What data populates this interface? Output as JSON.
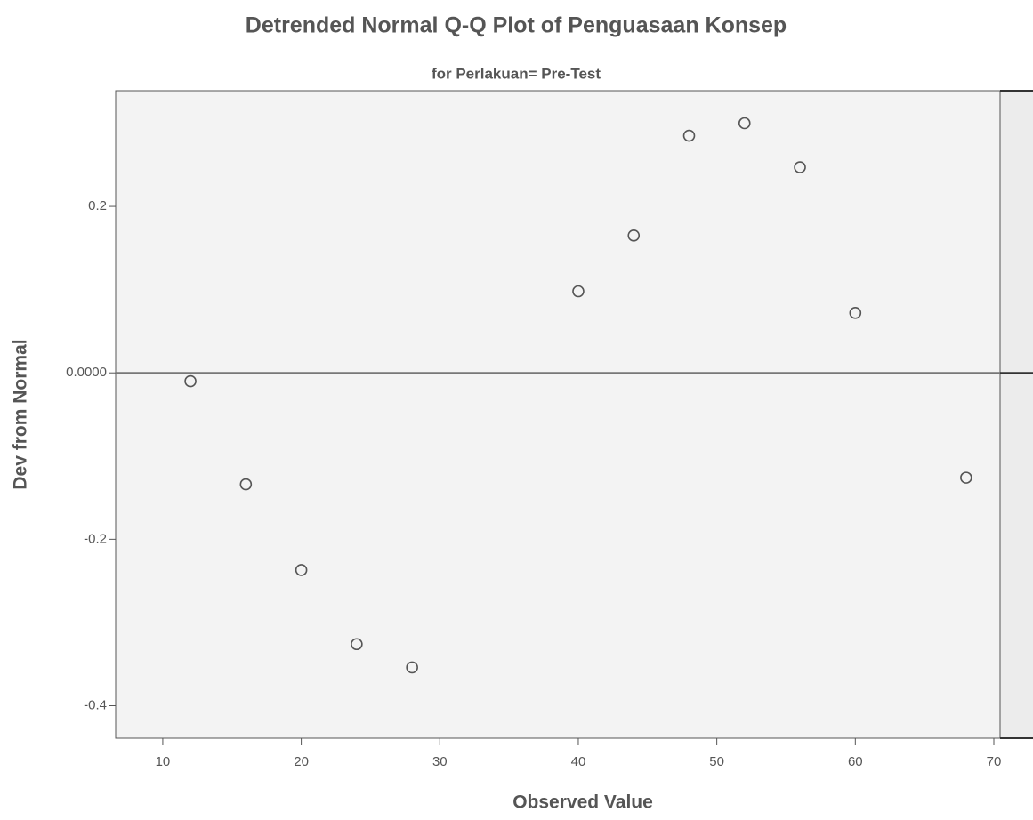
{
  "chart_data": {
    "type": "scatter",
    "title": "Detrended Normal Q-Q Plot of Penguasaan Konsep",
    "subtitle": "for Perlakuan= Pre-Test",
    "x_label": "Observed Value",
    "y_label": "Dev from Normal",
    "x": [
      12,
      16,
      20,
      24,
      28,
      40,
      44,
      48,
      52,
      56,
      60,
      68
    ],
    "values": [
      -0.01,
      -0.134,
      -0.237,
      -0.326,
      -0.354,
      0.098,
      0.165,
      0.285,
      0.3,
      0.247,
      0.072,
      -0.126
    ],
    "color": "#555555",
    "xlim": [
      6.6,
      70.45
    ],
    "ylim": [
      -0.439,
      0.339
    ],
    "xticks": [
      10,
      20,
      30,
      40,
      50,
      60,
      70
    ],
    "yticks": [
      0.2,
      {
        "value": 0,
        "label": "0.0000"
      },
      -0.2,
      -0.4
    ],
    "reference_line": 0
  }
}
